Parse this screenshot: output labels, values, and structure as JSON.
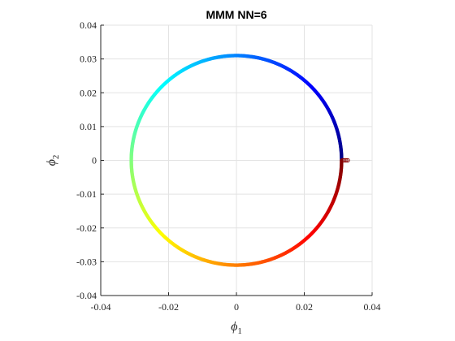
{
  "chart_data": {
    "type": "scatter",
    "title": "MMM NN=6",
    "xlabel": "ϕ1",
    "ylabel": "ϕ2",
    "xlim": [
      -0.04,
      0.04
    ],
    "ylim": [
      -0.04,
      0.04
    ],
    "xticks": [
      -0.04,
      -0.02,
      0,
      0.02,
      0.04
    ],
    "yticks": [
      -0.04,
      -0.03,
      -0.02,
      -0.01,
      0,
      0.01,
      0.02,
      0.03,
      0.04
    ],
    "xtick_labels": [
      "-0.04",
      "-0.02",
      "0",
      "0.02",
      "0.04"
    ],
    "ytick_labels": [
      "-0.04",
      "-0.03",
      "-0.02",
      "-0.01",
      "0",
      "0.01",
      "0.02",
      "0.03",
      "0.04"
    ],
    "grid": true,
    "colormap": "jet",
    "series": [
      {
        "shape": "circle",
        "center": [
          0,
          0
        ],
        "radius": 0.031,
        "start_angle_deg": 0,
        "direction": "counter-clockwise",
        "color_start": "#00007f",
        "color_end": "#7f0000"
      },
      {
        "shape": "markers",
        "points": [
          [
            0.0313,
            0
          ],
          [
            0.0318,
            0
          ],
          [
            0.0323,
            0
          ],
          [
            0.0328,
            0
          ]
        ],
        "color": "#8b0000"
      }
    ]
  }
}
